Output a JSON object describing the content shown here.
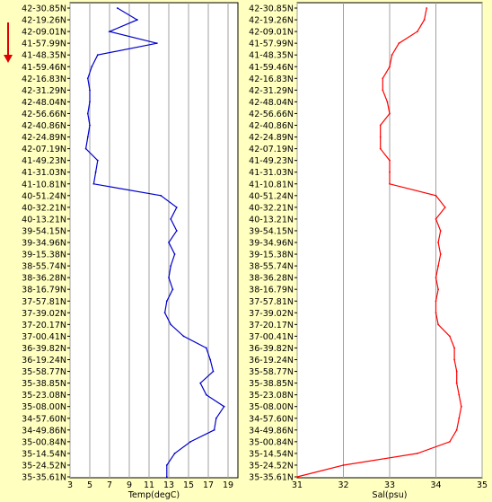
{
  "latitudes": [
    "42-30.85N",
    "42-19.26N",
    "42-09.01N",
    "41-57.99N",
    "41-48.35N",
    "41-59.46N",
    "42-16.83N",
    "42-31.29N",
    "42-48.04N",
    "42-56.66N",
    "42-40.86N",
    "42-24.89N",
    "42-07.19N",
    "41-49.23N",
    "41-31.03N",
    "41-10.81N",
    "40-51.24N",
    "40-32.21N",
    "40-13.21N",
    "39-54.15N",
    "39-34.96N",
    "39-15.38N",
    "38-55.74N",
    "38-36.28N",
    "38-16.79N",
    "37-57.81N",
    "37-39.02N",
    "37-20.17N",
    "37-00.41N",
    "36-39.82N",
    "36-19.24N",
    "35-58.77N",
    "35-38.85N",
    "35-23.08N",
    "35-08.00N",
    "34-57.60N",
    "34-49.86N",
    "35-00.84N",
    "35-14.54N",
    "35-24.52N",
    "35-35.61N"
  ],
  "colors": {
    "background": "#ffffc0",
    "temp_line": "#0000cc",
    "sal_line": "#ff0000",
    "arrow": "#e00000",
    "grid": "#a0a0a0"
  },
  "chart_data": [
    {
      "type": "line",
      "xlabel": "Temp(degC)",
      "xticks": [
        "3",
        "5",
        "7",
        "9",
        "11",
        "13",
        "15",
        "17",
        "19"
      ],
      "xlim": [
        3,
        20
      ],
      "grid": true,
      "series": [
        {
          "values": [
            7.8,
            9.8,
            7.0,
            11.8,
            5.8,
            5.2,
            4.8,
            5.0,
            5.0,
            4.8,
            5.0,
            4.8,
            4.6,
            5.8,
            5.6,
            5.4,
            12.2,
            13.8,
            13.2,
            13.8,
            13.0,
            13.6,
            13.2,
            13.0,
            13.4,
            12.8,
            12.6,
            13.2,
            14.5,
            16.8,
            17.2,
            17.5,
            16.2,
            16.8,
            18.6,
            17.8,
            17.6,
            15.2,
            13.6,
            12.8,
            12.8
          ]
        }
      ]
    },
    {
      "type": "line",
      "xlabel": "Sal(psu)",
      "xticks": [
        "31",
        "32",
        "33",
        "34",
        "35"
      ],
      "xlim": [
        31,
        35
      ],
      "grid": true,
      "series": [
        {
          "values": [
            33.8,
            33.75,
            33.6,
            33.2,
            33.05,
            33.0,
            32.85,
            32.85,
            32.95,
            33.0,
            32.8,
            32.8,
            32.8,
            33.0,
            33.0,
            33.0,
            34.0,
            34.2,
            34.0,
            34.1,
            34.05,
            34.1,
            34.05,
            34.0,
            34.05,
            34.0,
            34.0,
            34.05,
            34.3,
            34.4,
            34.4,
            34.45,
            34.45,
            34.5,
            34.55,
            34.5,
            34.45,
            34.3,
            33.6,
            32.0,
            31.0
          ]
        }
      ]
    }
  ]
}
